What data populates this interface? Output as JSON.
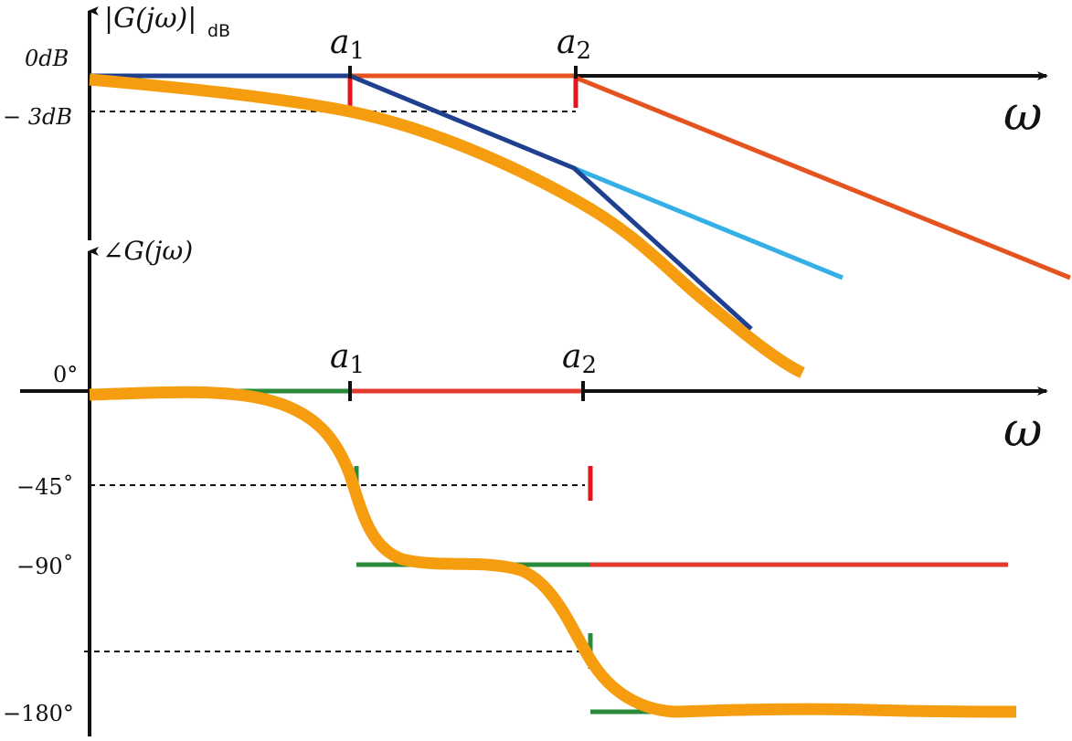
{
  "magnitude_plot": {
    "y_label_main": "|G(jω)|",
    "y_label_sub": "dB",
    "x_label": "ω",
    "tick_0db": "0dB",
    "tick_minus3db": "− 3dB",
    "a1": {
      "base": "a",
      "sub": "1"
    },
    "a2": {
      "base": "a",
      "sub": "2"
    }
  },
  "phase_plot": {
    "y_label": "∠G(jω)",
    "x_label": "ω",
    "tick_0": "0°",
    "tick_minus45": "−45˚",
    "tick_minus90": "−90˚",
    "tick_minus180": "−180°",
    "a1": {
      "base": "a",
      "sub": "1"
    },
    "a2": {
      "base": "a",
      "sub": "2"
    }
  },
  "colors": {
    "axis": "#111111",
    "asymptote_first_pole": "#1f3f8f",
    "asymptote_second_pole": "#e5531f",
    "asymptote_extension": "#35b0e6",
    "exact_curve": "#f59d0e",
    "phase_first_pole": "#2a8a3a",
    "phase_second_pole": "#e23a2e",
    "marker_red": "#e3141b"
  }
}
